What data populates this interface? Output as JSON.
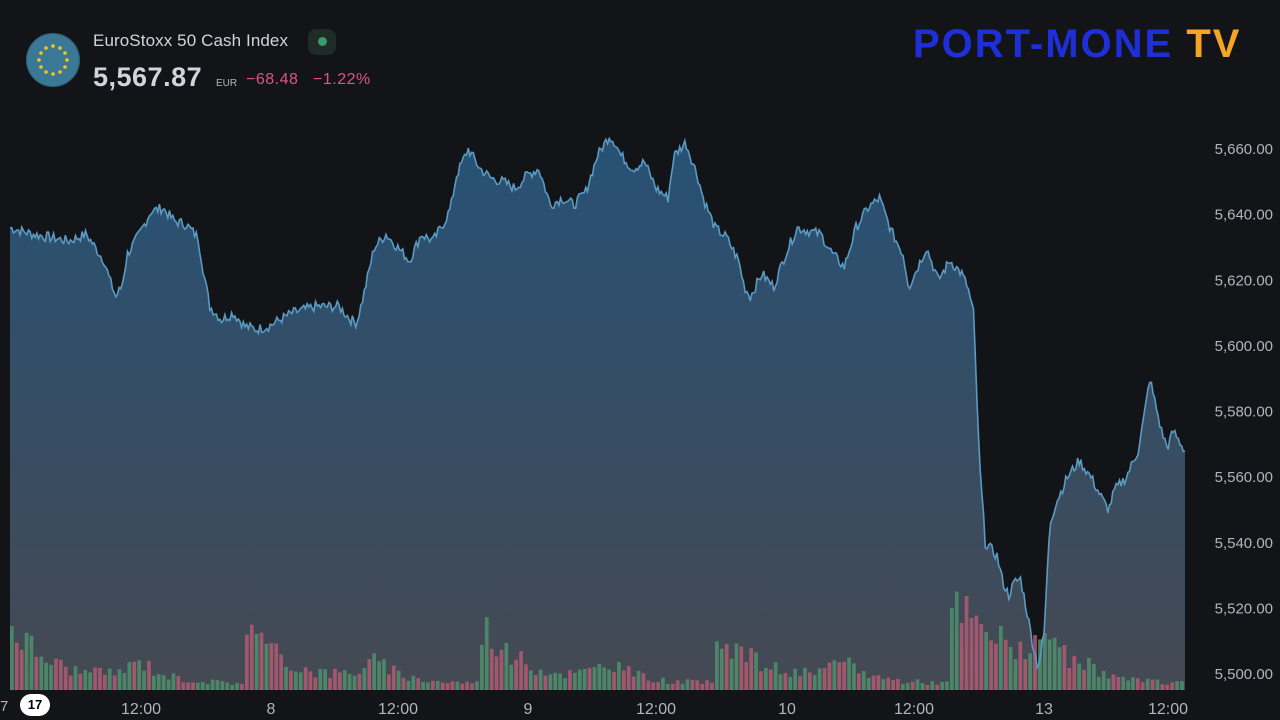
{
  "header": {
    "symbol_name": "EuroStoxx 50 Cash Index",
    "price": "5,567.87",
    "currency": "EUR",
    "change": "−68.48",
    "change_pct": "−1.22%",
    "status": "market-open-dot"
  },
  "brand": {
    "text_main": "PORT-MONE",
    "text_tv": "TV"
  },
  "footer": {
    "tv_logo": "17",
    "left_edge_label": "7"
  },
  "colors": {
    "background": "#131417",
    "line": "#5b9ac2",
    "area_top": "#2b5c85",
    "area_bottom": "#4a4f59",
    "volume_up": "#4e8f6c",
    "volume_down": "#b25a72",
    "change_negative": "#e05287",
    "axis_text": "#b2b5be"
  },
  "chart_data": {
    "type": "area",
    "title": "EuroStoxx 50 Cash Index",
    "y_axis": {
      "ticks": [
        "5,500.00",
        "5,520.00",
        "5,540.00",
        "5,560.00",
        "5,580.00",
        "5,600.00",
        "5,620.00",
        "5,640.00",
        "5,660.00"
      ],
      "range": [
        5497,
        5668
      ],
      "position": "right"
    },
    "x_axis": {
      "labels": [
        "12:00",
        "8",
        "12:00",
        "9",
        "12:00",
        "10",
        "12:00",
        "13",
        "12:00"
      ]
    },
    "series": [
      {
        "type": "line",
        "keypoints": [
          [
            0.0,
            5636
          ],
          [
            0.02,
            5634
          ],
          [
            0.05,
            5632
          ],
          [
            0.065,
            5634
          ],
          [
            0.08,
            5626
          ],
          [
            0.085,
            5620
          ],
          [
            0.09,
            5615
          ],
          [
            0.095,
            5618
          ],
          [
            0.1,
            5628
          ],
          [
            0.11,
            5634
          ],
          [
            0.12,
            5641
          ],
          [
            0.13,
            5642
          ],
          [
            0.14,
            5638
          ],
          [
            0.15,
            5637
          ],
          [
            0.16,
            5633
          ],
          [
            0.165,
            5622
          ],
          [
            0.17,
            5612
          ],
          [
            0.18,
            5608
          ],
          [
            0.19,
            5610
          ],
          [
            0.2,
            5606
          ],
          [
            0.21,
            5605
          ],
          [
            0.22,
            5606
          ],
          [
            0.23,
            5608
          ],
          [
            0.24,
            5610
          ],
          [
            0.25,
            5611
          ],
          [
            0.26,
            5612
          ],
          [
            0.27,
            5612
          ],
          [
            0.28,
            5612
          ],
          [
            0.29,
            5608
          ],
          [
            0.295,
            5607
          ],
          [
            0.3,
            5614
          ],
          [
            0.31,
            5630
          ],
          [
            0.32,
            5634
          ],
          [
            0.33,
            5630
          ],
          [
            0.34,
            5626
          ],
          [
            0.35,
            5634
          ],
          [
            0.36,
            5632
          ],
          [
            0.37,
            5638
          ],
          [
            0.375,
            5642
          ],
          [
            0.38,
            5652
          ],
          [
            0.39,
            5660
          ],
          [
            0.4,
            5654
          ],
          [
            0.41,
            5651
          ],
          [
            0.42,
            5650
          ],
          [
            0.43,
            5648
          ],
          [
            0.44,
            5652
          ],
          [
            0.45,
            5654
          ],
          [
            0.46,
            5643
          ],
          [
            0.47,
            5645
          ],
          [
            0.48,
            5643
          ],
          [
            0.49,
            5647
          ],
          [
            0.5,
            5658
          ],
          [
            0.51,
            5664
          ],
          [
            0.515,
            5662
          ],
          [
            0.52,
            5658
          ],
          [
            0.53,
            5654
          ],
          [
            0.54,
            5656
          ],
          [
            0.55,
            5648
          ],
          [
            0.56,
            5645
          ],
          [
            0.565,
            5658
          ],
          [
            0.575,
            5662
          ],
          [
            0.585,
            5652
          ],
          [
            0.59,
            5645
          ],
          [
            0.6,
            5636
          ],
          [
            0.61,
            5633
          ],
          [
            0.62,
            5626
          ],
          [
            0.625,
            5618
          ],
          [
            0.63,
            5615
          ],
          [
            0.64,
            5622
          ],
          [
            0.65,
            5618
          ],
          [
            0.66,
            5628
          ],
          [
            0.67,
            5636
          ],
          [
            0.68,
            5635
          ],
          [
            0.69,
            5634
          ],
          [
            0.7,
            5628
          ],
          [
            0.71,
            5624
          ],
          [
            0.72,
            5636
          ],
          [
            0.73,
            5642
          ],
          [
            0.74,
            5645
          ],
          [
            0.75,
            5635
          ],
          [
            0.76,
            5628
          ],
          [
            0.765,
            5618
          ],
          [
            0.77,
            5622
          ],
          [
            0.78,
            5630
          ],
          [
            0.79,
            5620
          ],
          [
            0.8,
            5626
          ],
          [
            0.81,
            5622
          ],
          [
            0.815,
            5618
          ],
          [
            0.82,
            5610
          ],
          [
            0.825,
            5565
          ],
          [
            0.83,
            5540
          ],
          [
            0.84,
            5536
          ],
          [
            0.845,
            5528
          ],
          [
            0.85,
            5524
          ],
          [
            0.855,
            5528
          ],
          [
            0.86,
            5529
          ],
          [
            0.865,
            5520
          ],
          [
            0.87,
            5510
          ],
          [
            0.875,
            5502
          ],
          [
            0.88,
            5512
          ],
          [
            0.885,
            5546
          ],
          [
            0.89,
            5552
          ],
          [
            0.9,
            5560
          ],
          [
            0.91,
            5565
          ],
          [
            0.92,
            5560
          ],
          [
            0.93,
            5553
          ],
          [
            0.935,
            5550
          ],
          [
            0.94,
            5556
          ],
          [
            0.95,
            5560
          ],
          [
            0.96,
            5568
          ],
          [
            0.965,
            5578
          ],
          [
            0.97,
            5590
          ],
          [
            0.975,
            5582
          ],
          [
            0.98,
            5574
          ],
          [
            0.985,
            5569
          ],
          [
            0.99,
            5574
          ],
          [
            0.995,
            5571
          ],
          [
            1.0,
            5568
          ]
        ]
      },
      {
        "type": "volume",
        "bar_count": 240
      }
    ]
  }
}
